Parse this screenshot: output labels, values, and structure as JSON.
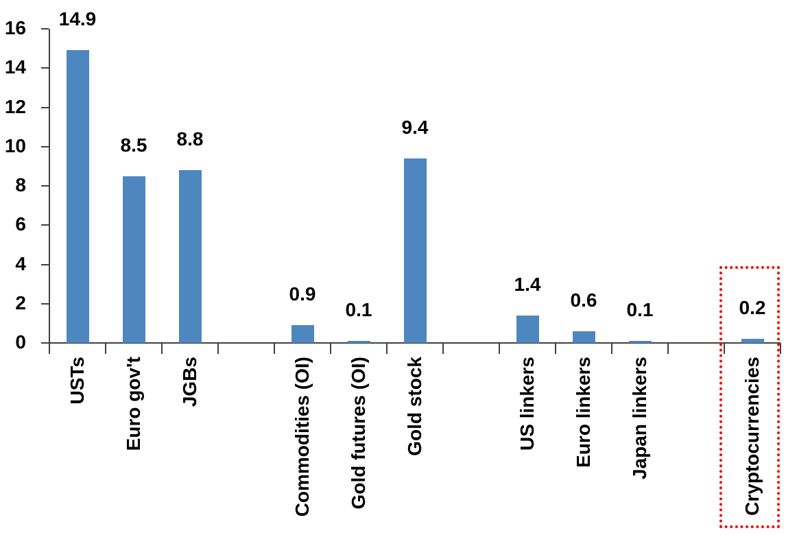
{
  "chart_data": {
    "type": "bar",
    "title": "",
    "xlabel": "",
    "ylabel": "",
    "categories": [
      "USTs",
      "Euro gov't",
      "JGBs",
      "Commodities (OI)",
      "Gold futures (OI)",
      "Gold stock",
      "US linkers",
      "Euro linkers",
      "Japan linkers",
      "Cryptocurrencies"
    ],
    "values": [
      14.9,
      8.5,
      8.8,
      0.9,
      0.1,
      9.4,
      1.4,
      0.6,
      0.1,
      0.2
    ],
    "value_labels": [
      "14.9",
      "8.5",
      "8.8",
      "0.9",
      "0.1",
      "9.4",
      "1.4",
      "0.6",
      "0.1",
      "0.2"
    ],
    "slots": [
      0,
      1,
      2,
      4,
      5,
      6,
      8,
      9,
      10,
      12
    ],
    "total_slots": 13,
    "groups": [
      [
        "USTs",
        "Euro gov't",
        "JGBs"
      ],
      [
        "Commodities (OI)",
        "Gold futures (OI)",
        "Gold stock"
      ],
      [
        "US linkers",
        "Euro linkers",
        "Japan linkers"
      ],
      [
        "Cryptocurrencies"
      ]
    ],
    "y_ticks": [
      "0",
      "2",
      "4",
      "6",
      "8",
      "10",
      "12",
      "14",
      "16"
    ],
    "ylim": [
      0,
      16
    ],
    "grid": false,
    "legend": "none",
    "bar_color": "#4E87BF",
    "axis_color": "#404040",
    "text_color": "#000000",
    "highlight": {
      "category": "Cryptocurrencies",
      "shape": "dotted-rectangle",
      "color": "#FE0000"
    }
  }
}
